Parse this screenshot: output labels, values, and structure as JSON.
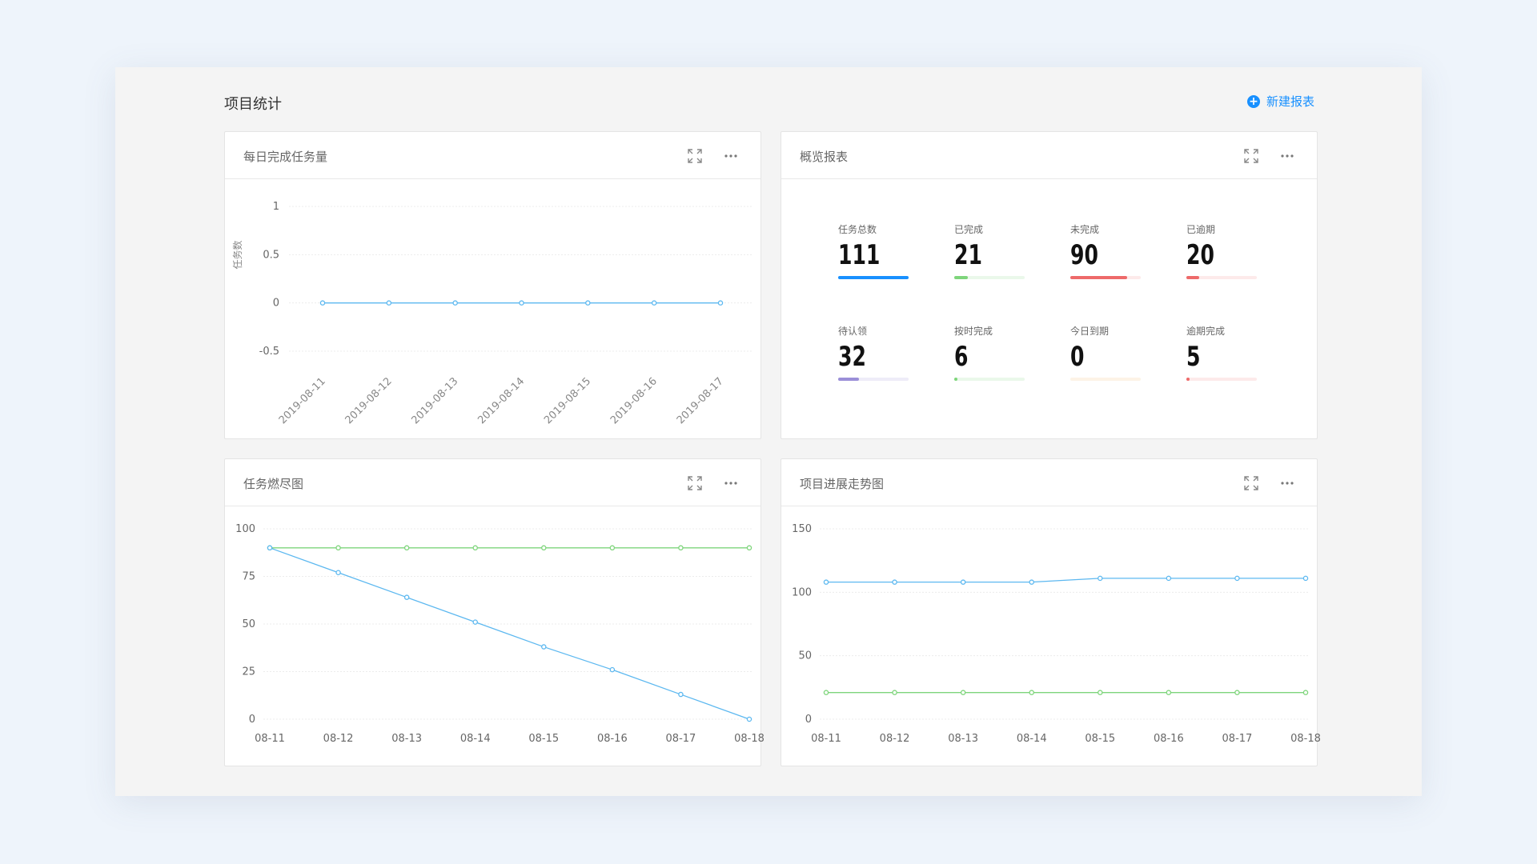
{
  "page": {
    "title": "项目统计",
    "new_report_label": "新建报表"
  },
  "cards": {
    "daily": {
      "title": "每日完成任务量"
    },
    "overview": {
      "title": "概览报表"
    },
    "burndown": {
      "title": "任务燃尽图"
    },
    "trend": {
      "title": "项目进展走势图"
    }
  },
  "overview_stats": [
    {
      "label": "任务总数",
      "value": "111",
      "fill": 1.0,
      "color": "#1890ff",
      "track": "#e6f2ff"
    },
    {
      "label": "已完成",
      "value": "21",
      "fill": 0.19,
      "color": "#7ed57b",
      "track": "#eaf8ea"
    },
    {
      "label": "未完成",
      "value": "90",
      "fill": 0.81,
      "color": "#ee6a6a",
      "track": "#fdeaea"
    },
    {
      "label": "已逾期",
      "value": "20",
      "fill": 0.18,
      "color": "#ee6a6a",
      "track": "#fdeaea"
    },
    {
      "label": "待认领",
      "value": "32",
      "fill": 0.29,
      "color": "#9b8fd8",
      "track": "#eeecf8"
    },
    {
      "label": "按时完成",
      "value": "6",
      "fill": 0.05,
      "color": "#7ed57b",
      "track": "#eaf8ea"
    },
    {
      "label": "今日到期",
      "value": "0",
      "fill": 0.0,
      "color": "#f5a623",
      "track": "#fdf3e6"
    },
    {
      "label": "逾期完成",
      "value": "5",
      "fill": 0.05,
      "color": "#ee6a6a",
      "track": "#fdeaea"
    }
  ],
  "chart_data": [
    {
      "type": "line",
      "title": "每日完成任务量",
      "ylabel": "任务数",
      "categories": [
        "2019-08-11",
        "2019-08-12",
        "2019-08-13",
        "2019-08-14",
        "2019-08-15",
        "2019-08-16",
        "2019-08-17"
      ],
      "yticks": [
        "1",
        "0.5",
        "0",
        "-0.5"
      ],
      "ylim": [
        -0.5,
        1
      ],
      "series": [
        {
          "values": [
            0,
            0,
            0,
            0,
            0,
            0,
            0
          ],
          "color": "#5cb8f0"
        }
      ]
    },
    {
      "type": "line",
      "title": "任务燃尽图",
      "categories": [
        "08-11",
        "08-12",
        "08-13",
        "08-14",
        "08-15",
        "08-16",
        "08-17",
        "08-18"
      ],
      "yticks": [
        "100",
        "75",
        "50",
        "25",
        "0"
      ],
      "ylim": [
        0,
        100
      ],
      "series": [
        {
          "values": [
            90,
            90,
            90,
            90,
            90,
            90,
            90,
            90
          ],
          "color": "#7ed57b"
        },
        {
          "values": [
            90,
            77,
            64,
            51,
            38,
            26,
            13,
            0
          ],
          "color": "#5cb8f0"
        }
      ]
    },
    {
      "type": "line",
      "title": "项目进展走势图",
      "categories": [
        "08-11",
        "08-12",
        "08-13",
        "08-14",
        "08-15",
        "08-16",
        "08-17",
        "08-18"
      ],
      "yticks": [
        "150",
        "100",
        "50",
        "0"
      ],
      "ylim": [
        0,
        150
      ],
      "series": [
        {
          "values": [
            108,
            108,
            108,
            108,
            111,
            111,
            111,
            111
          ],
          "color": "#5cb8f0"
        },
        {
          "values": [
            21,
            21,
            21,
            21,
            21,
            21,
            21,
            21
          ],
          "color": "#7ed57b"
        }
      ]
    }
  ]
}
